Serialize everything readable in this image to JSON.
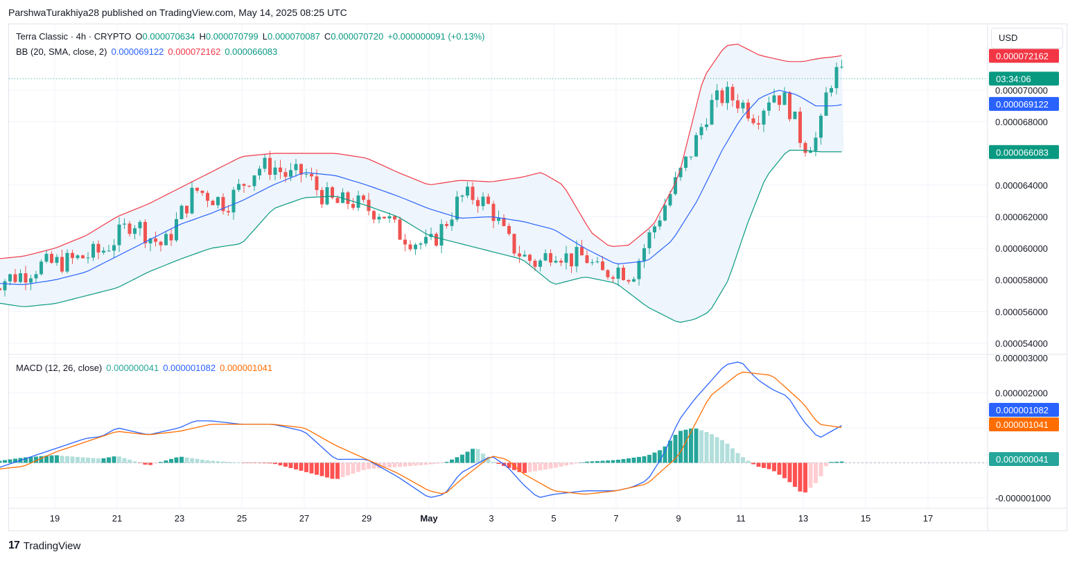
{
  "header": {
    "publisher_line": "ParshwaTurakhiya28 published on TradingView.com, May 14, 2025 08:25 UTC"
  },
  "currency_button": "USD",
  "legend": {
    "symbol": "Terra Classic · 4h · CRYPTO",
    "ohlc": [
      {
        "label": "O",
        "value": "0.000070634"
      },
      {
        "label": "H",
        "value": "0.000070799"
      },
      {
        "label": "L",
        "value": "0.000070087"
      },
      {
        "label": "C",
        "value": "0.000070720"
      }
    ],
    "change": "+0.000000091 (+0.13%)",
    "bb_label": "BB (20, SMA, close, 2)",
    "bb_values": [
      "0.000069122",
      "0.000072162",
      "0.000066083"
    ],
    "macd_label": "MACD (12, 26, close)",
    "macd_values": [
      "0.000000041",
      "0.000001082",
      "0.000001041"
    ]
  },
  "footer": {
    "brand": "TradingView",
    "logo": "17"
  },
  "colors": {
    "up": "#26a69a",
    "down": "#ef5350",
    "bb_upper": "#f23645",
    "bb_basis": "#2962ff",
    "bb_lower": "#089981",
    "bb_fill": "#eef5fc",
    "macd_line": "#2962ff",
    "signal_line": "#ff6d00",
    "hist_up_strong": "#26a69a",
    "hist_up_weak": "#b2dfdb",
    "hist_down_strong": "#ff5252",
    "hist_down_weak": "#ffcdd2"
  },
  "chart_data": [
    {
      "type": "candlestick",
      "title": "Terra Classic · 4h · CRYPTO",
      "y_axis_ticks": [
        "0.000070000",
        "0.000068000",
        "0.000064000",
        "0.000062000",
        "0.000060000",
        "0.000058000",
        "0.000056000",
        "0.000054000"
      ],
      "ylim": [
        5.33e-05,
        7.42e-05
      ],
      "x_axis_ticks": [
        "19",
        "21",
        "23",
        "25",
        "27",
        "29",
        "May",
        "3",
        "5",
        "7",
        "9",
        "11",
        "13",
        "15",
        "17"
      ],
      "price_labels": [
        {
          "text": "0.000072162",
          "value": 7.2162e-05,
          "color": "#f23645"
        },
        {
          "text": "03:34:06",
          "value": 7.072e-05,
          "color": "#089981"
        },
        {
          "text": "0.000069122",
          "value": 6.9122e-05,
          "color": "#2962ff"
        },
        {
          "text": "0.000066083",
          "value": 6.6083e-05,
          "color": "#089981"
        }
      ],
      "last_close": 7.072e-05,
      "bb_upper_anchors": [
        [
          17.0,
          5.93e-05
        ],
        [
          18.0,
          5.95e-05
        ],
        [
          19.0,
          6e-05
        ],
        [
          20.0,
          6.08e-05
        ],
        [
          21.0,
          6.2e-05
        ],
        [
          22.0,
          6.28e-05
        ],
        [
          23.0,
          6.38e-05
        ],
        [
          24.0,
          6.48e-05
        ],
        [
          25.0,
          6.58e-05
        ],
        [
          26.0,
          6.6e-05
        ],
        [
          27.0,
          6.6e-05
        ],
        [
          28.0,
          6.6e-05
        ],
        [
          29.0,
          6.57e-05
        ],
        [
          30.0,
          6.48e-05
        ],
        [
          1.0,
          6.4e-05
        ],
        [
          2.0,
          6.43e-05
        ],
        [
          3.0,
          6.42e-05
        ],
        [
          4.0,
          6.45e-05
        ],
        [
          4.6,
          6.48e-05
        ],
        [
          5.3,
          6.4e-05
        ],
        [
          6.2,
          6.1e-05
        ],
        [
          6.8,
          6.01e-05
        ],
        [
          7.4,
          6.02e-05
        ],
        [
          8.2,
          6.15e-05
        ],
        [
          9.0,
          6.45e-05
        ],
        [
          9.8,
          7.08e-05
        ],
        [
          10.5,
          7.28e-05
        ],
        [
          10.9,
          7.29e-05
        ],
        [
          11.6,
          7.22e-05
        ],
        [
          12.5,
          7.18e-05
        ],
        [
          13.0,
          7.18e-05
        ],
        [
          13.5,
          7.2e-05
        ],
        [
          14.0,
          7.21e-05
        ],
        [
          14.3,
          7.22e-05
        ]
      ],
      "bb_basis_anchors": [
        [
          17.0,
          5.78e-05
        ],
        [
          18.0,
          5.77e-05
        ],
        [
          19.0,
          5.8e-05
        ],
        [
          20.0,
          5.85e-05
        ],
        [
          21.0,
          5.95e-05
        ],
        [
          22.0,
          6.05e-05
        ],
        [
          23.0,
          6.15e-05
        ],
        [
          24.0,
          6.22e-05
        ],
        [
          25.0,
          6.3e-05
        ],
        [
          26.0,
          6.4e-05
        ],
        [
          27.0,
          6.48e-05
        ],
        [
          28.0,
          6.46e-05
        ],
        [
          29.0,
          6.4e-05
        ],
        [
          30.0,
          6.33e-05
        ],
        [
          1.0,
          6.25e-05
        ],
        [
          2.0,
          6.19e-05
        ],
        [
          3.0,
          6.2e-05
        ],
        [
          4.0,
          6.17e-05
        ],
        [
          5.0,
          6.12e-05
        ],
        [
          6.0,
          6e-05
        ],
        [
          7.0,
          5.9e-05
        ],
        [
          8.0,
          5.92e-05
        ],
        [
          8.8,
          6.05e-05
        ],
        [
          9.6,
          6.3e-05
        ],
        [
          10.4,
          6.62e-05
        ],
        [
          11.0,
          6.82e-05
        ],
        [
          11.6,
          6.95e-05
        ],
        [
          12.2,
          7e-05
        ],
        [
          12.8,
          6.97e-05
        ],
        [
          13.4,
          6.9e-05
        ],
        [
          14.0,
          6.9e-05
        ],
        [
          14.3,
          6.91e-05
        ]
      ],
      "bb_lower_anchors": [
        [
          17.0,
          5.66e-05
        ],
        [
          18.0,
          5.63e-05
        ],
        [
          19.0,
          5.65e-05
        ],
        [
          20.0,
          5.7e-05
        ],
        [
          21.0,
          5.75e-05
        ],
        [
          22.0,
          5.85e-05
        ],
        [
          23.0,
          5.93e-05
        ],
        [
          24.0,
          6e-05
        ],
        [
          25.0,
          6.03e-05
        ],
        [
          26.0,
          6.25e-05
        ],
        [
          27.0,
          6.32e-05
        ],
        [
          28.0,
          6.33e-05
        ],
        [
          29.0,
          6.27e-05
        ],
        [
          30.0,
          6.2e-05
        ],
        [
          1.0,
          6.08e-05
        ],
        [
          2.0,
          6.03e-05
        ],
        [
          3.0,
          5.98e-05
        ],
        [
          4.0,
          5.93e-05
        ],
        [
          5.0,
          5.77e-05
        ],
        [
          6.0,
          5.82e-05
        ],
        [
          7.0,
          5.78e-05
        ],
        [
          8.0,
          5.63e-05
        ],
        [
          8.5,
          5.58e-05
        ],
        [
          9.0,
          5.53e-05
        ],
        [
          9.5,
          5.55e-05
        ],
        [
          10.0,
          5.6e-05
        ],
        [
          10.6,
          5.8e-05
        ],
        [
          11.2,
          6.15e-05
        ],
        [
          11.8,
          6.45e-05
        ],
        [
          12.5,
          6.62e-05
        ],
        [
          13.0,
          6.62e-05
        ],
        [
          13.5,
          6.61e-05
        ],
        [
          14.3,
          6.61e-05
        ]
      ],
      "candle_anchors": [
        [
          17.0,
          5.78e-05
        ],
        [
          18.0,
          5.84e-05
        ],
        [
          18.5,
          5.89e-05
        ],
        [
          19.5,
          5.92e-05
        ],
        [
          20.5,
          5.98e-05
        ],
        [
          21.0,
          6.07e-05
        ],
        [
          21.5,
          6.18e-05
        ],
        [
          22.0,
          6.08e-05
        ],
        [
          22.5,
          6.01e-05
        ],
        [
          23.0,
          6.2e-05
        ],
        [
          23.5,
          6.37e-05
        ],
        [
          24.0,
          6.33e-05
        ],
        [
          24.5,
          6.28e-05
        ],
        [
          25.0,
          6.4e-05
        ],
        [
          25.5,
          6.51e-05
        ],
        [
          26.0,
          6.52e-05
        ],
        [
          26.5,
          6.45e-05
        ],
        [
          27.0,
          6.48e-05
        ],
        [
          27.5,
          6.35e-05
        ],
        [
          28.0,
          6.28e-05
        ],
        [
          28.5,
          6.3e-05
        ],
        [
          29.0,
          6.25e-05
        ],
        [
          29.5,
          6.23e-05
        ],
        [
          30.0,
          6.1e-05
        ],
        [
          30.5,
          6.05e-05
        ],
        [
          1.0,
          6.01e-05
        ],
        [
          1.5,
          6.15e-05
        ],
        [
          2.0,
          6.32e-05
        ],
        [
          2.5,
          6.33e-05
        ],
        [
          3.0,
          6.25e-05
        ],
        [
          3.5,
          6.05e-05
        ],
        [
          4.0,
          5.95e-05
        ],
        [
          4.5,
          5.9e-05
        ],
        [
          5.0,
          6e-05
        ],
        [
          5.5,
          5.93e-05
        ],
        [
          6.0,
          5.95e-05
        ],
        [
          6.5,
          5.83e-05
        ],
        [
          7.0,
          5.88e-05
        ],
        [
          7.5,
          5.83e-05
        ],
        [
          8.0,
          6.05e-05
        ],
        [
          8.5,
          6.25e-05
        ],
        [
          9.0,
          6.45e-05
        ],
        [
          9.5,
          6.65e-05
        ],
        [
          10.0,
          6.9e-05
        ],
        [
          10.5,
          6.97e-05
        ],
        [
          11.0,
          6.92e-05
        ],
        [
          11.5,
          6.83e-05
        ],
        [
          12.0,
          6.99e-05
        ],
        [
          12.5,
          6.92e-05
        ],
        [
          13.0,
          6.65e-05
        ],
        [
          13.5,
          6.7e-05
        ],
        [
          13.75,
          6.98e-05
        ],
        [
          14.0,
          7.12e-05
        ],
        [
          14.3,
          7.07e-05
        ]
      ]
    },
    {
      "type": "macd",
      "title": "MACD (12, 26, close)",
      "y_axis_ticks": [
        "0.000003000",
        "0.000002000",
        "-0.000001000"
      ],
      "ylim": [
        -1.3e-06,
        3.1e-06
      ],
      "price_labels": [
        {
          "text": "0.000001082",
          "value": 1.082e-06,
          "color": "#2962ff"
        },
        {
          "text": "0.000001041",
          "value": 1.041e-06,
          "color": "#ff6d00"
        },
        {
          "text": "0.000000041",
          "value": 4.1e-08,
          "color": "#26a69a"
        }
      ],
      "macd_anchors": [
        [
          17.0,
          -2e-07
        ],
        [
          18.0,
          1e-07
        ],
        [
          19.0,
          4e-07
        ],
        [
          20.0,
          7e-07
        ],
        [
          20.5,
          7.5e-07
        ],
        [
          21.0,
          1e-06
        ],
        [
          22.0,
          8e-07
        ],
        [
          23.0,
          1e-06
        ],
        [
          23.5,
          1.2e-06
        ],
        [
          24.0,
          1.2e-06
        ],
        [
          25.0,
          1.1e-06
        ],
        [
          26.0,
          1.1e-06
        ],
        [
          27.0,
          9e-07
        ],
        [
          27.5,
          5e-07
        ],
        [
          28.0,
          1e-07
        ],
        [
          29.0,
          1e-07
        ],
        [
          30.0,
          -4e-07
        ],
        [
          1.0,
          -1e-06
        ],
        [
          1.5,
          -9e-07
        ],
        [
          2.0,
          -3e-07
        ],
        [
          3.0,
          2e-07
        ],
        [
          3.5,
          -1e-07
        ],
        [
          4.0,
          -6e-07
        ],
        [
          4.5,
          -1e-06
        ],
        [
          5.0,
          -9e-07
        ],
        [
          6.0,
          -8e-07
        ],
        [
          7.0,
          -8e-07
        ],
        [
          7.5,
          -7e-07
        ],
        [
          8.0,
          -5e-07
        ],
        [
          8.5,
          2e-07
        ],
        [
          9.0,
          1.2e-06
        ],
        [
          9.5,
          1.8e-06
        ],
        [
          10.0,
          2.3e-06
        ],
        [
          10.5,
          2.8e-06
        ],
        [
          11.0,
          2.9e-06
        ],
        [
          11.5,
          2.4e-06
        ],
        [
          12.0,
          2.1e-06
        ],
        [
          12.5,
          1.9e-06
        ],
        [
          13.0,
          1.2e-06
        ],
        [
          13.5,
          7e-07
        ],
        [
          14.3,
          1.1e-06
        ]
      ],
      "signal_anchors": [
        [
          17.0,
          -2e-07
        ],
        [
          18.0,
          -1e-07
        ],
        [
          19.0,
          3e-07
        ],
        [
          20.0,
          6e-07
        ],
        [
          21.0,
          9e-07
        ],
        [
          22.0,
          8e-07
        ],
        [
          23.0,
          9e-07
        ],
        [
          24.0,
          1.1e-06
        ],
        [
          25.0,
          1.1e-06
        ],
        [
          26.0,
          1.1e-06
        ],
        [
          27.0,
          1e-06
        ],
        [
          28.0,
          5e-07
        ],
        [
          29.0,
          1e-07
        ],
        [
          30.0,
          -3e-07
        ],
        [
          1.0,
          -8e-07
        ],
        [
          1.5,
          -9e-07
        ],
        [
          2.0,
          -5e-07
        ],
        [
          3.0,
          2e-07
        ],
        [
          3.5,
          1e-07
        ],
        [
          4.0,
          -3e-07
        ],
        [
          5.0,
          -8e-07
        ],
        [
          6.0,
          -9e-07
        ],
        [
          7.0,
          -8e-07
        ],
        [
          8.0,
          -6e-07
        ],
        [
          9.0,
          2e-07
        ],
        [
          10.0,
          1.9e-06
        ],
        [
          11.0,
          2.6e-06
        ],
        [
          12.0,
          2.5e-06
        ],
        [
          13.0,
          1.7e-06
        ],
        [
          13.5,
          1.1e-06
        ],
        [
          14.3,
          1e-06
        ]
      ],
      "hist_anchors": [
        [
          17.0,
          3e-08
        ],
        [
          18.0,
          1.5e-07
        ],
        [
          19.0,
          2.2e-07
        ],
        [
          20.0,
          1.5e-07
        ],
        [
          20.5,
          1.2e-07
        ],
        [
          21.0,
          2e-07
        ],
        [
          22.0,
          -8e-08
        ],
        [
          23.0,
          1.8e-07
        ],
        [
          24.0,
          6e-08
        ],
        [
          25.0,
          0.0
        ],
        [
          26.0,
          -2e-08
        ],
        [
          27.0,
          -2.5e-07
        ],
        [
          28.0,
          -4.8e-07
        ],
        [
          29.0,
          -1.8e-07
        ],
        [
          30.0,
          -1.2e-07
        ],
        [
          1.0,
          -5e-08
        ],
        [
          1.5,
          0.0
        ],
        [
          2.0,
          2e-07
        ],
        [
          2.5,
          4.5e-07
        ],
        [
          3.0,
          5e-08
        ],
        [
          4.0,
          -3e-07
        ],
        [
          5.0,
          -1.5e-07
        ],
        [
          6.0,
          3e-08
        ],
        [
          7.0,
          8e-08
        ],
        [
          8.0,
          2e-07
        ],
        [
          8.5,
          4e-07
        ],
        [
          9.0,
          9e-07
        ],
        [
          9.5,
          1e-06
        ],
        [
          10.0,
          8.5e-07
        ],
        [
          10.5,
          6e-07
        ],
        [
          11.0,
          2e-07
        ],
        [
          11.5,
          -1e-07
        ],
        [
          12.0,
          -2e-07
        ],
        [
          12.5,
          -5e-07
        ],
        [
          13.0,
          -9e-07
        ],
        [
          13.5,
          -5e-07
        ],
        [
          13.8,
          2e-08
        ],
        [
          14.3,
          4e-08
        ]
      ]
    }
  ]
}
